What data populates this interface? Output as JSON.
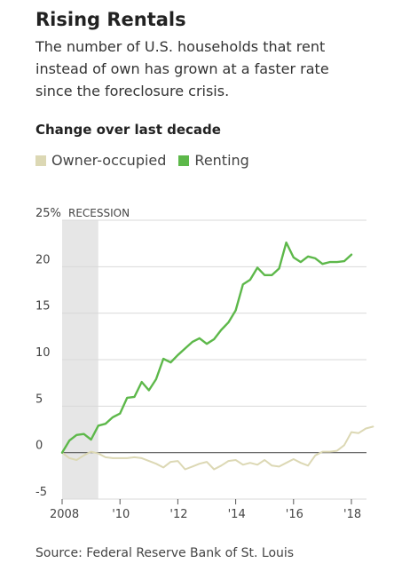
{
  "title": "Rising Rentals",
  "subtitle": "The number of U.S. households that rent instead of own has grown at a faster rate since the foreclosure crisis.",
  "chart_heading": "Change over last decade",
  "source": "Source: Federal Reserve Bank of St. Louis",
  "colors": {
    "owner": "#dcd8b4",
    "renting": "#5db84a",
    "recession": "#e6e6e6",
    "grid": "#d9d9d9",
    "zero": "#555555"
  },
  "chart_data": {
    "type": "line",
    "ylim": [
      -5,
      25
    ],
    "xlim": [
      2008.0,
      2018.5
    ],
    "y_ticks": [
      {
        "value": 25,
        "label": "25%"
      },
      {
        "value": 20,
        "label": "20"
      },
      {
        "value": 15,
        "label": "15"
      },
      {
        "value": 10,
        "label": "10"
      },
      {
        "value": 5,
        "label": "5"
      },
      {
        "value": 0,
        "label": "0"
      },
      {
        "value": -5,
        "label": "-5"
      }
    ],
    "x_ticks": [
      {
        "value": 2008,
        "label": "2008"
      },
      {
        "value": 2010,
        "label": "'10"
      },
      {
        "value": 2012,
        "label": "'12"
      },
      {
        "value": 2014,
        "label": "'14"
      },
      {
        "value": 2016,
        "label": "'16"
      },
      {
        "value": 2018,
        "label": "'18"
      }
    ],
    "recession": {
      "start": 2008.0,
      "end": 2009.25,
      "label": "RECESSION"
    },
    "grid": true,
    "legend_position": "top-left",
    "series": [
      {
        "name": "Owner-occupied",
        "color_key": "owner",
        "values": [
          [
            2008.0,
            0.0
          ],
          [
            2008.25,
            -0.6
          ],
          [
            2008.5,
            -0.8
          ],
          [
            2008.75,
            -0.3
          ],
          [
            2009.0,
            0.1
          ],
          [
            2009.25,
            -0.1
          ],
          [
            2009.5,
            -0.5
          ],
          [
            2009.75,
            -0.6
          ],
          [
            2010.0,
            -0.6
          ],
          [
            2010.25,
            -0.6
          ],
          [
            2010.5,
            -0.5
          ],
          [
            2010.75,
            -0.6
          ],
          [
            2011.0,
            -0.9
          ],
          [
            2011.25,
            -1.2
          ],
          [
            2011.5,
            -1.6
          ],
          [
            2011.75,
            -1.0
          ],
          [
            2012.0,
            -0.9
          ],
          [
            2012.25,
            -1.8
          ],
          [
            2012.5,
            -1.5
          ],
          [
            2012.75,
            -1.2
          ],
          [
            2013.0,
            -1.0
          ],
          [
            2013.25,
            -1.8
          ],
          [
            2013.5,
            -1.4
          ],
          [
            2013.75,
            -0.9
          ],
          [
            2014.0,
            -0.8
          ],
          [
            2014.25,
            -1.3
          ],
          [
            2014.5,
            -1.1
          ],
          [
            2014.75,
            -1.3
          ],
          [
            2015.0,
            -0.8
          ],
          [
            2015.25,
            -1.4
          ],
          [
            2015.5,
            -1.5
          ],
          [
            2015.75,
            -1.1
          ],
          [
            2016.0,
            -0.7
          ],
          [
            2016.25,
            -1.1
          ],
          [
            2016.5,
            -1.4
          ],
          [
            2016.75,
            -0.3
          ],
          [
            2017.0,
            0.1
          ],
          [
            2017.25,
            0.1
          ],
          [
            2017.5,
            0.2
          ],
          [
            2017.75,
            0.8
          ],
          [
            2018.0,
            2.2
          ],
          [
            2018.25,
            2.1
          ],
          [
            2018.5,
            2.6
          ],
          [
            2018.75,
            2.8
          ]
        ]
      },
      {
        "name": "Renting",
        "color_key": "renting",
        "values": [
          [
            2008.0,
            0.0
          ],
          [
            2008.25,
            1.3
          ],
          [
            2008.5,
            1.9
          ],
          [
            2008.75,
            2.0
          ],
          [
            2009.0,
            1.4
          ],
          [
            2009.25,
            2.9
          ],
          [
            2009.5,
            3.1
          ],
          [
            2009.75,
            3.8
          ],
          [
            2010.0,
            4.2
          ],
          [
            2010.25,
            5.9
          ],
          [
            2010.5,
            6.0
          ],
          [
            2010.75,
            7.6
          ],
          [
            2011.0,
            6.7
          ],
          [
            2011.25,
            7.9
          ],
          [
            2011.5,
            10.1
          ],
          [
            2011.75,
            9.7
          ],
          [
            2012.0,
            10.5
          ],
          [
            2012.25,
            11.2
          ],
          [
            2012.5,
            11.9
          ],
          [
            2012.75,
            12.3
          ],
          [
            2013.0,
            11.7
          ],
          [
            2013.25,
            12.2
          ],
          [
            2013.5,
            13.2
          ],
          [
            2013.75,
            14.0
          ],
          [
            2014.0,
            15.3
          ],
          [
            2014.25,
            18.1
          ],
          [
            2014.5,
            18.6
          ],
          [
            2014.75,
            19.9
          ],
          [
            2015.0,
            19.1
          ],
          [
            2015.25,
            19.1
          ],
          [
            2015.5,
            19.8
          ],
          [
            2015.75,
            22.6
          ],
          [
            2016.0,
            21.0
          ],
          [
            2016.25,
            20.5
          ],
          [
            2016.5,
            21.1
          ],
          [
            2016.75,
            20.9
          ],
          [
            2017.0,
            20.3
          ],
          [
            2017.25,
            20.5
          ],
          [
            2017.5,
            20.5
          ],
          [
            2017.75,
            20.6
          ],
          [
            2018.0,
            21.3
          ]
        ]
      }
    ]
  }
}
